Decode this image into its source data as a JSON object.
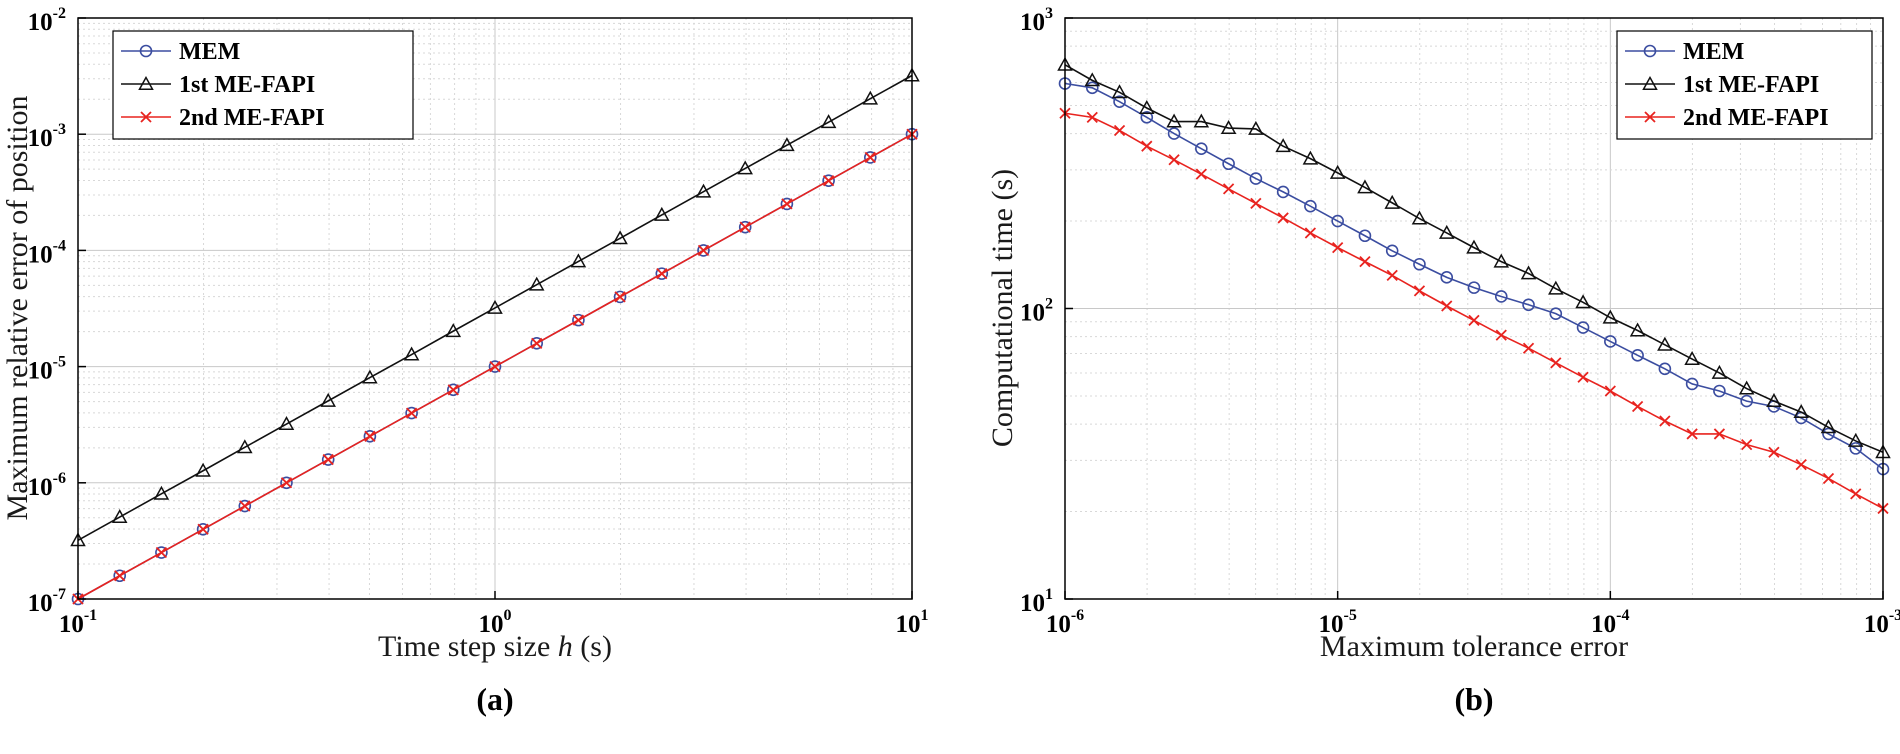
{
  "chart_data": [
    {
      "type": "line",
      "panel_label": "(a)",
      "xscale": "log",
      "yscale": "log",
      "xlim": [
        0.1,
        10
      ],
      "ylim": [
        1e-07,
        0.01
      ],
      "xlabel_prefix": "Time step size ",
      "xlabel_var": "h",
      "xlabel_suffix": " (s)",
      "ylabel": "Maximum relative error of position",
      "xticks": [
        {
          "base": "10",
          "exp": "-1"
        },
        {
          "base": "10",
          "exp": "0"
        },
        {
          "base": "10",
          "exp": "1"
        }
      ],
      "yticks": [
        {
          "base": "10",
          "exp": "-7"
        },
        {
          "base": "10",
          "exp": "-6"
        },
        {
          "base": "10",
          "exp": "-5"
        },
        {
          "base": "10",
          "exp": "-4"
        },
        {
          "base": "10",
          "exp": "-3"
        },
        {
          "base": "10",
          "exp": "-2"
        }
      ],
      "grid": true,
      "legend_position": "top-left",
      "x": [
        0.1,
        0.1259,
        0.1585,
        0.1995,
        0.2512,
        0.3162,
        0.3981,
        0.5012,
        0.631,
        0.7943,
        1.0,
        1.259,
        1.585,
        1.995,
        2.512,
        3.162,
        3.981,
        5.012,
        6.31,
        7.943,
        10.0
      ],
      "series": [
        {
          "name": "MEM",
          "color": "#3b4da0",
          "marker": "circle",
          "values": [
            1e-07,
            1.585e-07,
            2.512e-07,
            3.981e-07,
            6.31e-07,
            1e-06,
            1.585e-06,
            2.512e-06,
            3.981e-06,
            6.31e-06,
            1e-05,
            1.585e-05,
            2.512e-05,
            3.981e-05,
            6.31e-05,
            0.0001,
            0.0001585,
            0.0002512,
            0.0003981,
            0.000631,
            0.001
          ]
        },
        {
          "name": "1st ME-FAPI",
          "color": "#111111",
          "marker": "triangle",
          "values": [
            3.2e-07,
            5.07e-07,
            8.04e-07,
            1.27e-06,
            2.02e-06,
            3.2e-06,
            5.07e-06,
            8.04e-06,
            1.27e-05,
            2.02e-05,
            3.2e-05,
            5.07e-05,
            8.04e-05,
            0.000127,
            0.000202,
            0.00032,
            0.000507,
            0.000804,
            0.00127,
            0.00202,
            0.0032
          ]
        },
        {
          "name": "2nd ME-FAPI",
          "color": "#e8231f",
          "marker": "x",
          "values": [
            1e-07,
            1.585e-07,
            2.512e-07,
            3.981e-07,
            6.31e-07,
            1e-06,
            1.585e-06,
            2.512e-06,
            3.981e-06,
            6.31e-06,
            1e-05,
            1.585e-05,
            2.512e-05,
            3.981e-05,
            6.31e-05,
            0.0001,
            0.0001585,
            0.0002512,
            0.0003981,
            0.000631,
            0.001
          ]
        }
      ]
    },
    {
      "type": "line",
      "panel_label": "(b)",
      "xscale": "log",
      "yscale": "log",
      "xlim": [
        1e-06,
        0.001
      ],
      "ylim": [
        10,
        1000
      ],
      "xlabel_prefix": "Maximum tolerance error",
      "xlabel_var": "",
      "xlabel_suffix": "",
      "ylabel": "Computational time (s)",
      "xticks": [
        {
          "base": "10",
          "exp": "-6"
        },
        {
          "base": "10",
          "exp": "-5"
        },
        {
          "base": "10",
          "exp": "-4"
        },
        {
          "base": "10",
          "exp": "-3"
        }
      ],
      "yticks": [
        {
          "base": "10",
          "exp": "1"
        },
        {
          "base": "10",
          "exp": "2"
        },
        {
          "base": "10",
          "exp": "3"
        }
      ],
      "grid": true,
      "legend_position": "top-right",
      "x": [
        1e-06,
        1.259e-06,
        1.585e-06,
        1.995e-06,
        2.512e-06,
        3.162e-06,
        3.981e-06,
        5.012e-06,
        6.31e-06,
        7.943e-06,
        1e-05,
        1.259e-05,
        1.585e-05,
        1.995e-05,
        2.512e-05,
        3.162e-05,
        3.981e-05,
        5.012e-05,
        6.31e-05,
        7.943e-05,
        0.0001,
        0.0001259,
        0.0001585,
        0.0001995,
        0.0002512,
        0.0003162,
        0.0003981,
        0.0005012,
        0.000631,
        0.0007943,
        0.001
      ],
      "series": [
        {
          "name": "MEM",
          "color": "#3b4da0",
          "marker": "circle",
          "values": [
            595,
            575,
            515,
            455,
            400,
            355,
            315,
            280,
            252,
            225,
            200,
            178,
            158,
            142,
            128,
            118,
            110,
            103,
            96,
            86,
            77,
            69,
            62,
            55,
            52,
            48,
            46,
            42,
            37,
            33,
            28
          ]
        },
        {
          "name": "1st ME-FAPI",
          "color": "#111111",
          "marker": "triangle",
          "values": [
            690,
            610,
            555,
            490,
            440,
            440,
            418,
            415,
            362,
            328,
            293,
            261,
            231,
            204,
            182,
            162,
            145,
            132,
            117,
            105,
            93,
            84,
            75,
            67,
            60,
            53,
            48,
            44,
            39,
            35,
            32
          ]
        },
        {
          "name": "2nd ME-FAPI",
          "color": "#e8231f",
          "marker": "x",
          "values": [
            470,
            455,
            410,
            362,
            325,
            290,
            258,
            230,
            205,
            182,
            162,
            145,
            130,
            115,
            102,
            91,
            81,
            73,
            65,
            58,
            52,
            46,
            41,
            37,
            37,
            34,
            32,
            29,
            26,
            23,
            20.5
          ]
        }
      ]
    }
  ]
}
